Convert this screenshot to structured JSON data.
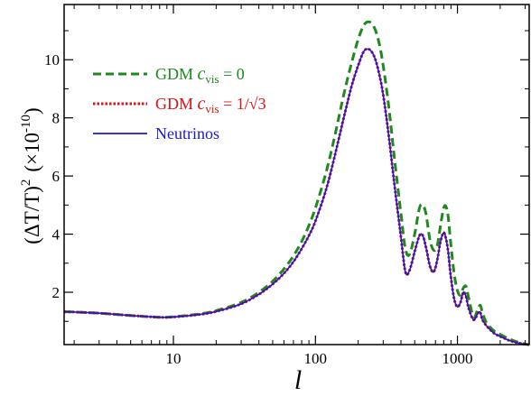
{
  "chart_data": {
    "type": "line",
    "title": "",
    "xlabel": "l",
    "ylabel": {
      "pre": "(ΔT/T)",
      "power": "2",
      "factor": "(×10",
      "factor_power": "-10",
      "factor_close": ")"
    },
    "xscale": "log",
    "xlim": [
      1.7,
      3200
    ],
    "ylim": [
      0.2,
      11.9
    ],
    "x_ticks": [
      {
        "value": 10,
        "label": "10"
      },
      {
        "value": 100,
        "label": "100"
      },
      {
        "value": 1000,
        "label": "1000"
      }
    ],
    "y_ticks": [
      {
        "value": 2,
        "label": "2"
      },
      {
        "value": 4,
        "label": "4"
      },
      {
        "value": 6,
        "label": "6"
      },
      {
        "value": 8,
        "label": "8"
      },
      {
        "value": 10,
        "label": "10"
      }
    ],
    "grid": false,
    "legend_position": "top-left",
    "series": [
      {
        "id": "gdm0",
        "legend_parts": [
          "GDM ",
          "c",
          "vis",
          " = 0"
        ],
        "color": "#1e8a1e",
        "style": "dashed",
        "x": [
          1.7,
          2,
          3,
          5,
          8,
          10,
          15,
          20,
          30,
          40,
          50,
          60,
          70,
          80,
          90,
          100,
          120,
          140,
          160,
          180,
          200,
          220,
          240,
          260,
          280,
          300,
          330,
          360,
          400,
          430,
          460,
          500,
          540,
          570,
          600,
          640,
          680,
          720,
          760,
          800,
          830,
          860,
          900,
          950,
          1000,
          1050,
          1100,
          1150,
          1200,
          1300,
          1400,
          1450,
          1500,
          1600,
          1800,
          2000,
          2300,
          2600,
          3000,
          3200
        ],
        "y": [
          1.33,
          1.32,
          1.28,
          1.2,
          1.14,
          1.16,
          1.25,
          1.37,
          1.65,
          2.0,
          2.38,
          2.8,
          3.25,
          3.75,
          4.3,
          4.9,
          6.2,
          7.6,
          8.9,
          9.9,
          10.7,
          11.2,
          11.3,
          11.1,
          10.6,
          9.8,
          8.3,
          6.6,
          4.7,
          3.5,
          3.3,
          4.0,
          4.9,
          5.0,
          4.7,
          3.8,
          3.45,
          3.6,
          4.3,
          4.9,
          4.95,
          4.6,
          3.6,
          2.6,
          2.05,
          1.9,
          2.15,
          2.2,
          1.8,
          1.15,
          1.45,
          1.55,
          1.3,
          0.95,
          0.68,
          0.55,
          0.4,
          0.3,
          0.22,
          0.2
        ]
      },
      {
        "id": "gdm13",
        "legend_parts": [
          "GDM ",
          "c",
          "vis",
          " = 1/√3"
        ],
        "color": "#e01010",
        "style": "dotted",
        "x": [
          1.7,
          2,
          3,
          5,
          8,
          10,
          15,
          20,
          30,
          40,
          50,
          60,
          70,
          80,
          90,
          100,
          120,
          140,
          160,
          180,
          200,
          220,
          240,
          260,
          280,
          300,
          330,
          360,
          400,
          430,
          460,
          500,
          540,
          570,
          600,
          640,
          680,
          720,
          760,
          800,
          830,
          860,
          900,
          950,
          1000,
          1050,
          1100,
          1150,
          1200,
          1300,
          1400,
          1450,
          1500,
          1600,
          1800,
          2000,
          2300,
          2600,
          3000,
          3200
        ],
        "y": [
          1.33,
          1.32,
          1.28,
          1.2,
          1.14,
          1.15,
          1.23,
          1.34,
          1.6,
          1.93,
          2.28,
          2.65,
          3.05,
          3.5,
          3.95,
          4.45,
          5.6,
          6.9,
          8.1,
          9.1,
          9.8,
          10.3,
          10.35,
          10.1,
          9.55,
          8.8,
          7.3,
          5.7,
          3.9,
          2.7,
          2.75,
          3.4,
          3.95,
          3.95,
          3.55,
          2.9,
          2.7,
          3.1,
          3.75,
          4.05,
          3.85,
          3.4,
          2.5,
          1.75,
          1.5,
          1.65,
          2.0,
          1.85,
          1.45,
          1.05,
          1.3,
          1.3,
          1.05,
          0.85,
          0.6,
          0.48,
          0.35,
          0.27,
          0.21,
          0.2
        ]
      },
      {
        "id": "neutrinos",
        "legend_parts": [
          "Neutrinos",
          "",
          "",
          ""
        ],
        "color": "#1a1ad0",
        "style": "solid",
        "x": [
          1.7,
          2,
          3,
          5,
          8,
          10,
          15,
          20,
          30,
          40,
          50,
          60,
          70,
          80,
          90,
          100,
          120,
          140,
          160,
          180,
          200,
          220,
          240,
          260,
          280,
          300,
          330,
          360,
          400,
          430,
          460,
          500,
          540,
          570,
          600,
          640,
          680,
          720,
          760,
          800,
          830,
          860,
          900,
          950,
          1000,
          1050,
          1100,
          1150,
          1200,
          1300,
          1400,
          1450,
          1500,
          1600,
          1800,
          2000,
          2300,
          2600,
          3000,
          3200
        ],
        "y": [
          1.33,
          1.32,
          1.28,
          1.2,
          1.14,
          1.15,
          1.23,
          1.34,
          1.6,
          1.93,
          2.28,
          2.65,
          3.05,
          3.5,
          3.95,
          4.45,
          5.6,
          6.9,
          8.1,
          9.1,
          9.8,
          10.3,
          10.35,
          10.1,
          9.55,
          8.8,
          7.3,
          5.7,
          3.9,
          2.7,
          2.75,
          3.4,
          3.95,
          3.95,
          3.55,
          2.9,
          2.7,
          3.1,
          3.75,
          4.05,
          3.85,
          3.4,
          2.5,
          1.75,
          1.5,
          1.65,
          2.0,
          1.85,
          1.45,
          1.05,
          1.3,
          1.3,
          1.05,
          0.85,
          0.6,
          0.48,
          0.35,
          0.27,
          0.21,
          0.2
        ]
      }
    ]
  }
}
